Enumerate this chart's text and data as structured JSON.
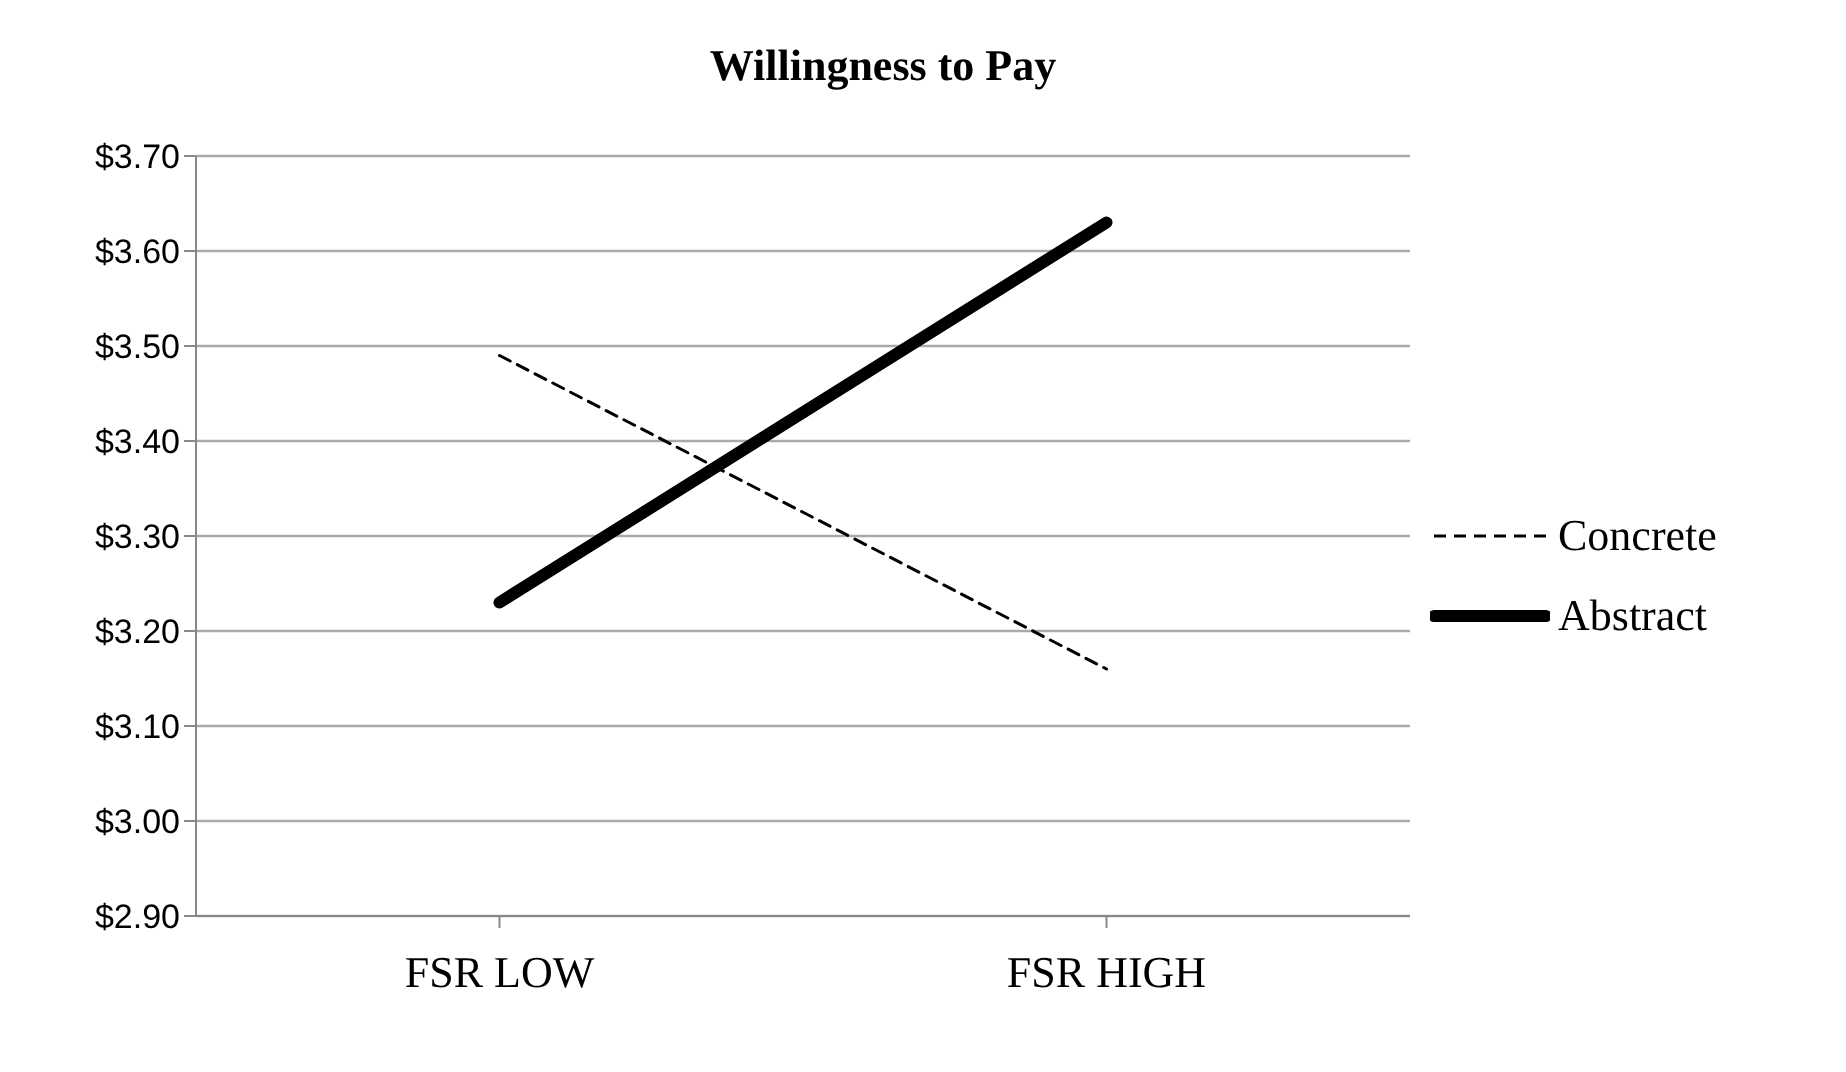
{
  "chart_data": {
    "type": "line",
    "title": "Willingness to Pay",
    "categories": [
      "FSR LOW",
      "FSR HIGH"
    ],
    "series": [
      {
        "name": "Concrete",
        "color": "#000000",
        "values": [
          3.49,
          3.16
        ],
        "line_style": "dashed"
      },
      {
        "name": "Abstract",
        "color": "#000000",
        "values": [
          3.23,
          3.63
        ],
        "line_style": "solid"
      }
    ],
    "ylim": [
      2.9,
      3.7
    ],
    "yticks": [
      {
        "value": 2.9,
        "label": "$2.90"
      },
      {
        "value": 3.0,
        "label": "$3.00"
      },
      {
        "value": 3.1,
        "label": "$3.10"
      },
      {
        "value": 3.2,
        "label": "$3.20"
      },
      {
        "value": 3.3,
        "label": "$3.30"
      },
      {
        "value": 3.4,
        "label": "$3.40"
      },
      {
        "value": 3.5,
        "label": "$3.50"
      },
      {
        "value": 3.6,
        "label": "$3.60"
      },
      {
        "value": 3.7,
        "label": "$3.70"
      }
    ],
    "grid": "y",
    "legend": "right",
    "marker": "none"
  }
}
